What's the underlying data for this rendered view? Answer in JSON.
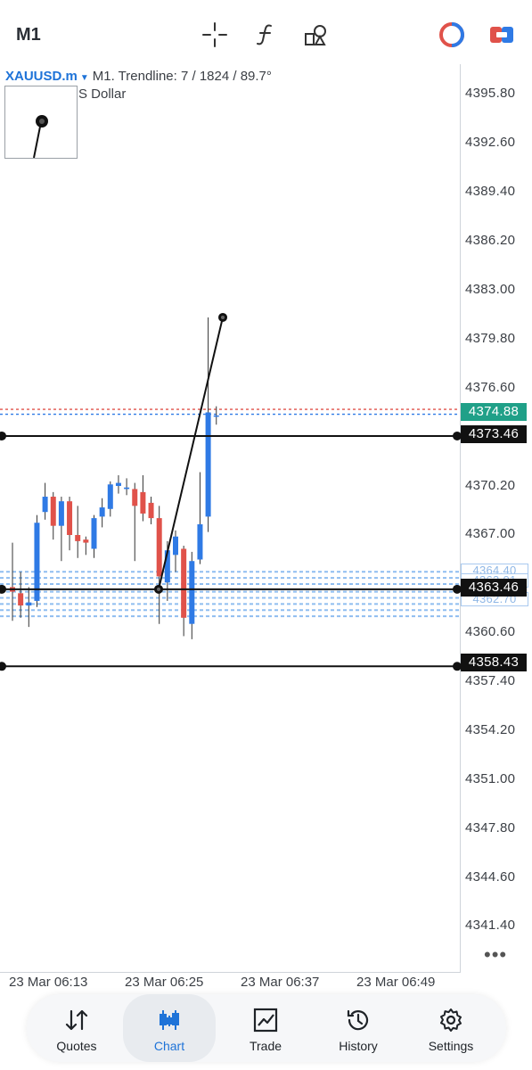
{
  "toolbar": {
    "timeframe": "M1",
    "icons": [
      "crosshair-icon",
      "function-icon",
      "objects-icon",
      "one-click-trading-icon",
      "quick-trade-icon"
    ]
  },
  "chart_header": {
    "symbol": "XAUUSD.m",
    "info": "M1. Trendline: 7 / 1824 / 89.7°",
    "subtitle": "S Dollar"
  },
  "price_axis": [
    "4395.80",
    "4392.60",
    "4389.40",
    "4386.20",
    "4383.00",
    "4379.80",
    "4376.60",
    "4370.20",
    "4367.00",
    "4360.60",
    "4357.40",
    "4354.20",
    "4351.00",
    "4347.80",
    "4344.60",
    "4341.40"
  ],
  "price_tags": {
    "bid": "4374.88",
    "line_upper": "4373.46",
    "line_mid": "4363.46",
    "line_lower": "4358.43",
    "faint_1": "4364.40",
    "faint_2": "4363.01",
    "faint_3": "4362.70"
  },
  "time_axis": [
    "23 Mar 06:13",
    "23 Mar 06:25",
    "23 Mar 06:37",
    "23 Mar 06:49"
  ],
  "colors": {
    "bull": "#2f7ae5",
    "bear": "#e0524a",
    "ask_line": "#e0524a",
    "bid_line": "#2f7ae5",
    "accent": "#1e73d8",
    "bid_tag": "#20a088"
  },
  "chart_data": {
    "type": "candlestick",
    "symbol": "XAUUSD.m",
    "timeframe": "M1",
    "ylim": [
      4339.0,
      4398.0
    ],
    "candles": [
      {
        "o": 4363.6,
        "h": 4366.5,
        "l": 4361.4,
        "c": 4363.3
      },
      {
        "o": 4363.2,
        "h": 4364.6,
        "l": 4361.6,
        "c": 4362.4
      },
      {
        "o": 4362.4,
        "h": 4363.6,
        "l": 4361.0,
        "c": 4362.6
      },
      {
        "o": 4362.7,
        "h": 4368.3,
        "l": 4362.3,
        "c": 4367.8
      },
      {
        "o": 4368.5,
        "h": 4370.4,
        "l": 4368.0,
        "c": 4369.5
      },
      {
        "o": 4369.5,
        "h": 4369.8,
        "l": 4366.7,
        "c": 4367.6
      },
      {
        "o": 4367.6,
        "h": 4369.5,
        "l": 4365.3,
        "c": 4369.2
      },
      {
        "o": 4369.2,
        "h": 4369.5,
        "l": 4366.0,
        "c": 4367.0
      },
      {
        "o": 4367.0,
        "h": 4368.9,
        "l": 4365.5,
        "c": 4366.6
      },
      {
        "o": 4366.7,
        "h": 4366.9,
        "l": 4365.7,
        "c": 4366.5
      },
      {
        "o": 4366.1,
        "h": 4368.3,
        "l": 4365.5,
        "c": 4368.1
      },
      {
        "o": 4368.2,
        "h": 4369.4,
        "l": 4367.5,
        "c": 4368.8
      },
      {
        "o": 4368.7,
        "h": 4370.5,
        "l": 4368.2,
        "c": 4370.3
      },
      {
        "o": 4370.2,
        "h": 4370.9,
        "l": 4369.7,
        "c": 4370.4
      },
      {
        "o": 4370.0,
        "h": 4370.7,
        "l": 4369.6,
        "c": 4370.1
      },
      {
        "o": 4370.0,
        "h": 4370.4,
        "l": 4365.3,
        "c": 4368.9
      },
      {
        "o": 4369.8,
        "h": 4370.9,
        "l": 4367.9,
        "c": 4368.4
      },
      {
        "o": 4369.1,
        "h": 4369.5,
        "l": 4367.7,
        "c": 4368.1
      },
      {
        "o": 4368.1,
        "h": 4368.9,
        "l": 4361.2,
        "c": 4364.3
      },
      {
        "o": 4363.9,
        "h": 4366.6,
        "l": 4362.7,
        "c": 4366.0
      },
      {
        "o": 4365.7,
        "h": 4367.3,
        "l": 4364.6,
        "c": 4366.9
      },
      {
        "o": 4366.1,
        "h": 4366.3,
        "l": 4360.4,
        "c": 4361.6
      },
      {
        "o": 4361.2,
        "h": 4365.9,
        "l": 4360.2,
        "c": 4365.3
      },
      {
        "o": 4365.4,
        "h": 4371.1,
        "l": 4365.1,
        "c": 4367.7
      },
      {
        "o": 4368.2,
        "h": 4381.2,
        "l": 4367.2,
        "c": 4375.0
      },
      {
        "o": 4374.8,
        "h": 4375.4,
        "l": 4374.2,
        "c": 4374.8
      }
    ],
    "horizontal_lines": [
      4373.46,
      4363.46,
      4358.43
    ],
    "bid": 4374.88,
    "trendline": {
      "from": 4363.46,
      "to": 4381.2
    }
  },
  "bottom_nav": [
    {
      "label": "Quotes",
      "icon": "quotes-icon"
    },
    {
      "label": "Chart",
      "icon": "chart-icon"
    },
    {
      "label": "Trade",
      "icon": "trade-icon"
    },
    {
      "label": "History",
      "icon": "history-icon"
    },
    {
      "label": "Settings",
      "icon": "settings-icon"
    }
  ]
}
